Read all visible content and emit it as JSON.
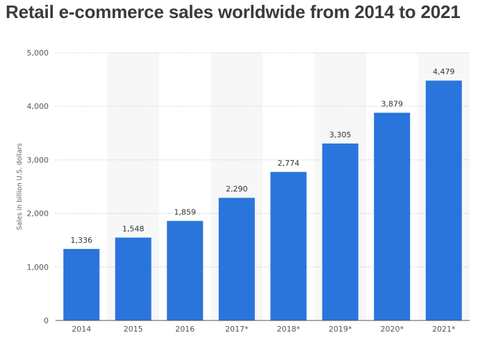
{
  "chart_data": {
    "type": "bar",
    "title": "Retail e-commerce sales worldwide from 2014 to 2021",
    "ylabel": "Sales in billion U.S. dollars",
    "xlabel": "",
    "categories": [
      "2014",
      "2015",
      "2016",
      "2017*",
      "2018*",
      "2019*",
      "2020*",
      "2021*"
    ],
    "values": [
      1336,
      1548,
      1859,
      2290,
      2774,
      3305,
      3879,
      4479
    ],
    "value_labels": [
      "1,336",
      "1,548",
      "1,859",
      "2,290",
      "2,774",
      "3,305",
      "3,879",
      "4,479"
    ],
    "ylim": [
      0,
      5000
    ],
    "yticks": [
      0,
      1000,
      2000,
      3000,
      4000,
      5000
    ],
    "ytick_labels": [
      "0",
      "1,000",
      "2,000",
      "3,000",
      "4,000",
      "5,000"
    ],
    "grid": true,
    "bar_color": "#2a75dc",
    "band_color": "#f7f7f7"
  }
}
